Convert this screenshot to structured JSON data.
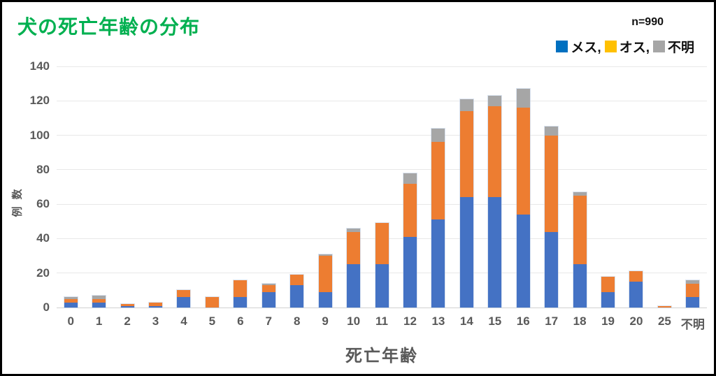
{
  "title": "犬の死亡年齢の分布",
  "sample_size_label": "n=990",
  "legend": [
    {
      "label": "メス,",
      "color": "#0070C0"
    },
    {
      "label": "オス,",
      "color": "#FFC000"
    },
    {
      "label": "不明",
      "color": "#A6A6A6"
    }
  ],
  "colors": {
    "title_green": "#00B050",
    "bar_blue": "#4472C4",
    "bar_orange": "#ED7D31",
    "bar_gray": "#A6A6A6",
    "axis_text": "#595959",
    "gridline": "#E8E8E8"
  },
  "chart_data": {
    "type": "bar",
    "stacked": true,
    "title": "犬の死亡年齢の分布",
    "xlabel": "死亡年齢",
    "ylabel": "例数",
    "ylim": [
      0,
      140
    ],
    "yticks": [
      0,
      20,
      40,
      60,
      80,
      100,
      120,
      140
    ],
    "grid": true,
    "legend_position": "top-right",
    "annotation": "n=990",
    "categories": [
      "0",
      "1",
      "2",
      "3",
      "4",
      "5",
      "6",
      "7",
      "8",
      "9",
      "10",
      "11",
      "12",
      "13",
      "14",
      "15",
      "16",
      "17",
      "18",
      "19",
      "20",
      "25",
      "不明"
    ],
    "series": [
      {
        "name": "メス",
        "color": "#4472C4",
        "values": [
          3,
          3,
          1,
          1,
          6,
          0,
          6,
          9,
          13,
          9,
          25,
          25,
          41,
          51,
          64,
          64,
          54,
          44,
          25,
          9,
          15,
          0,
          6
        ]
      },
      {
        "name": "オス",
        "color": "#ED7D31",
        "values": [
          2,
          2,
          1,
          2,
          4,
          6,
          10,
          4,
          6,
          21,
          19,
          24,
          31,
          45,
          50,
          53,
          62,
          56,
          40,
          9,
          6,
          1,
          8
        ]
      },
      {
        "name": "不明",
        "color": "#A6A6A6",
        "values": [
          1,
          2,
          0,
          0,
          0,
          0,
          0,
          1,
          0,
          1,
          2,
          0,
          6,
          8,
          7,
          6,
          11,
          5,
          2,
          0,
          0,
          0,
          2
        ]
      }
    ],
    "totals": [
      6,
      7,
      2,
      3,
      10,
      6,
      16,
      14,
      19,
      31,
      46,
      49,
      78,
      104,
      121,
      123,
      127,
      105,
      67,
      18,
      21,
      1,
      16
    ]
  }
}
